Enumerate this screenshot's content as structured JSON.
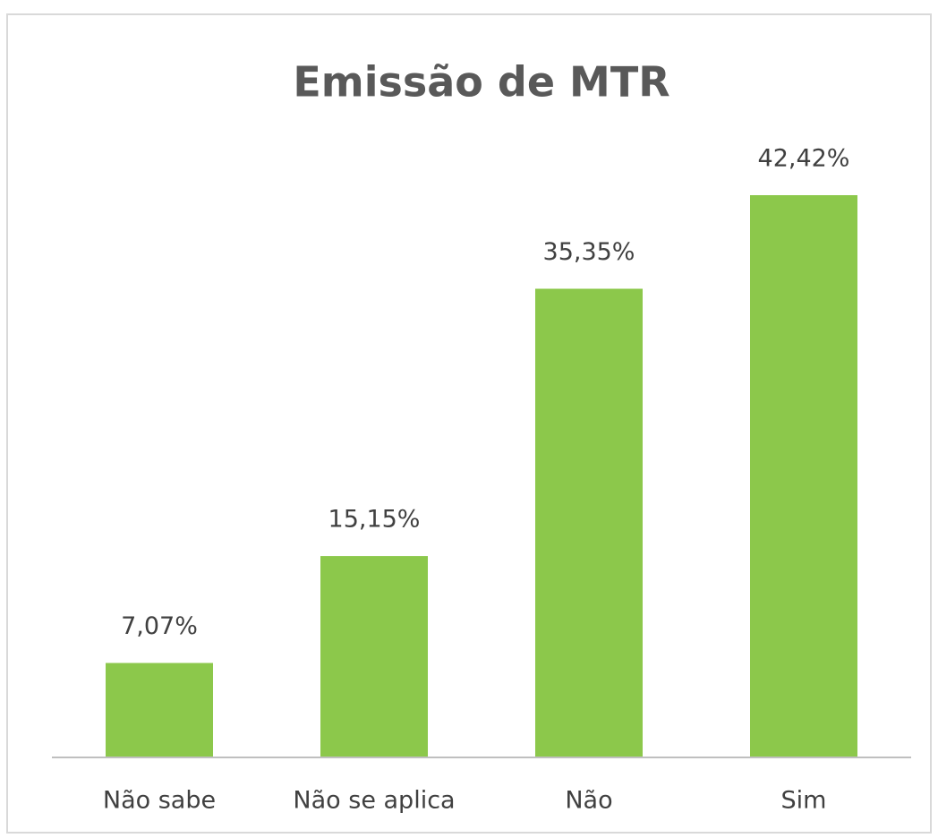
{
  "chart_data": {
    "type": "bar",
    "title": "Emissão de MTR",
    "categories": [
      "Não sabe",
      "Não se aplica",
      "Não",
      "Sim"
    ],
    "values": [
      7.07,
      15.15,
      35.35,
      42.42
    ],
    "value_labels": [
      "7,07%",
      "15,15%",
      "35,35%",
      "42,42%"
    ],
    "color": "#8cc84b"
  }
}
